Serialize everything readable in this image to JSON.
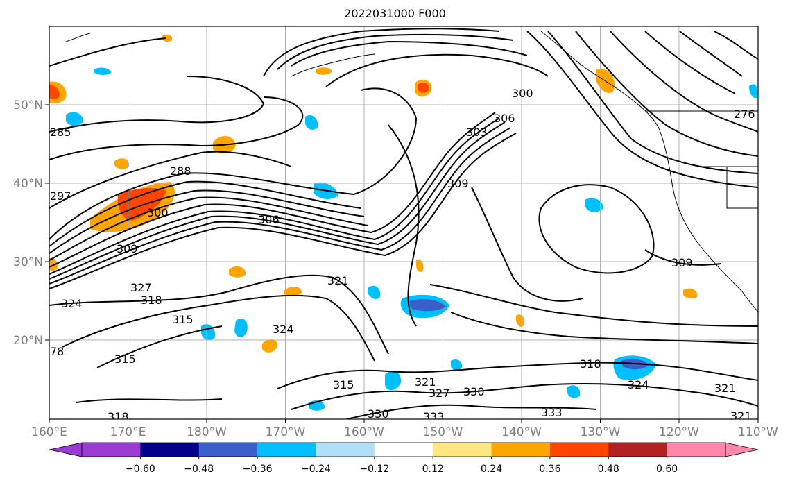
{
  "title": "2022031000 F000",
  "map": {
    "lat_labels": [
      "20°N",
      "30°N",
      "40°N",
      "50°N"
    ],
    "lon_labels": [
      "160°E",
      "170°E",
      "180°W",
      "170°W",
      "160°W",
      "150°W",
      "140°W",
      "130°W",
      "120°W",
      "110°W"
    ],
    "contour_labels": [
      {
        "text": "288"
      },
      {
        "text": "297"
      },
      {
        "text": "300"
      },
      {
        "text": "306"
      },
      {
        "text": "309"
      },
      {
        "text": "327"
      },
      {
        "text": "318"
      },
      {
        "text": "324"
      },
      {
        "text": "315"
      },
      {
        "text": "315"
      },
      {
        "text": "321"
      },
      {
        "text": "324"
      },
      {
        "text": "303"
      },
      {
        "text": "306"
      },
      {
        "text": "300"
      },
      {
        "text": "309"
      },
      {
        "text": "309"
      },
      {
        "text": "315"
      },
      {
        "text": "321"
      },
      {
        "text": "327"
      },
      {
        "text": "330"
      },
      {
        "text": "333"
      },
      {
        "text": "330"
      },
      {
        "text": "333"
      },
      {
        "text": "318"
      },
      {
        "text": "324"
      },
      {
        "text": "321"
      },
      {
        "text": "321"
      },
      {
        "text": "318"
      },
      {
        "text": "276"
      },
      {
        "text": "285"
      },
      {
        "text": "78"
      }
    ]
  },
  "colorbar": {
    "tick_labels": [
      "−0.60",
      "−0.48",
      "−0.36",
      "−0.24",
      "−0.12",
      "0.12",
      "0.24",
      "0.36",
      "0.48",
      "0.60"
    ],
    "colors": {
      "under": "#9b3bd1",
      "bins": [
        "#9b3bd1",
        "#00008b",
        "#3a5fcd",
        "#00bfff",
        "#b0e0f8",
        "#ffffff",
        "#ffe680",
        "#ffa500",
        "#ff4500",
        "#b22222",
        "#ff88aa"
      ],
      "over": "#ff88aa"
    }
  }
}
